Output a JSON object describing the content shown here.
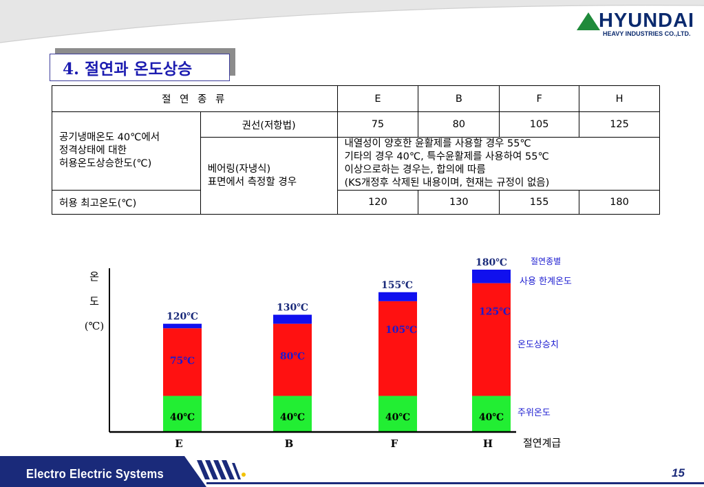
{
  "logo": {
    "brand": "HYUNDAI",
    "subtitle": "HEAVY INDUSTRIES CO.,LTD."
  },
  "title": "4. 절연과 온도상승",
  "table": {
    "header_label": "절  연 종 류",
    "classes": [
      "E",
      "B",
      "F",
      "H"
    ],
    "rows": {
      "ambient_label": "공기냉매온도 40℃에서\n정격상태에 대한\n허용온도상승한도(℃)",
      "winding_method": "권선(저항법)",
      "winding_values": [
        "75",
        "80",
        "105",
        "125"
      ],
      "bearing_method": "베어링(자냉식)\n표면에서 측정할 경우",
      "bearing_note": "내열성이 양호한 윤활제를 사용할 경우 55℃\n기타의 경우 40℃, 특수윤활제를 사용하여 55℃\n이상으로하는 경우는, 합의에 따름\n(KS개정후 삭제된 내용이며, 현재는 규정이 없음)",
      "max_temp_label": "허용 최고온도(℃)",
      "max_temp_values": [
        "120",
        "130",
        "155",
        "180"
      ]
    }
  },
  "chart_data": {
    "type": "bar",
    "stacked": true,
    "categories": [
      "E",
      "B",
      "F",
      "H"
    ],
    "ylabel": "온\n도\n(℃)",
    "xlabel": "절연계급",
    "ylim": [
      0,
      180
    ],
    "series": [
      {
        "name": "주위온도",
        "color": "#22ee33",
        "values": [
          40,
          40,
          40,
          40
        ],
        "labels": [
          "40℃",
          "40℃",
          "40℃",
          "40℃"
        ]
      },
      {
        "name": "온도상승치",
        "color": "#ff1111",
        "values": [
          75,
          80,
          105,
          125
        ],
        "labels": [
          "75℃",
          "80℃",
          "105℃",
          "125℃"
        ]
      },
      {
        "name": "사용 한계온도",
        "color": "#1010ee",
        "values": [
          5,
          10,
          10,
          15
        ]
      }
    ],
    "totals": [
      "120℃",
      "130℃",
      "155℃",
      "180℃"
    ],
    "legend_title": "절연종별",
    "grid": false
  },
  "footer": {
    "title": "Electro  Electric  Systems",
    "page": "15"
  },
  "colors": {
    "navy": "#1a2a7a",
    "blue_text": "#1a1ad0",
    "title_text": "#1c1cb0"
  }
}
